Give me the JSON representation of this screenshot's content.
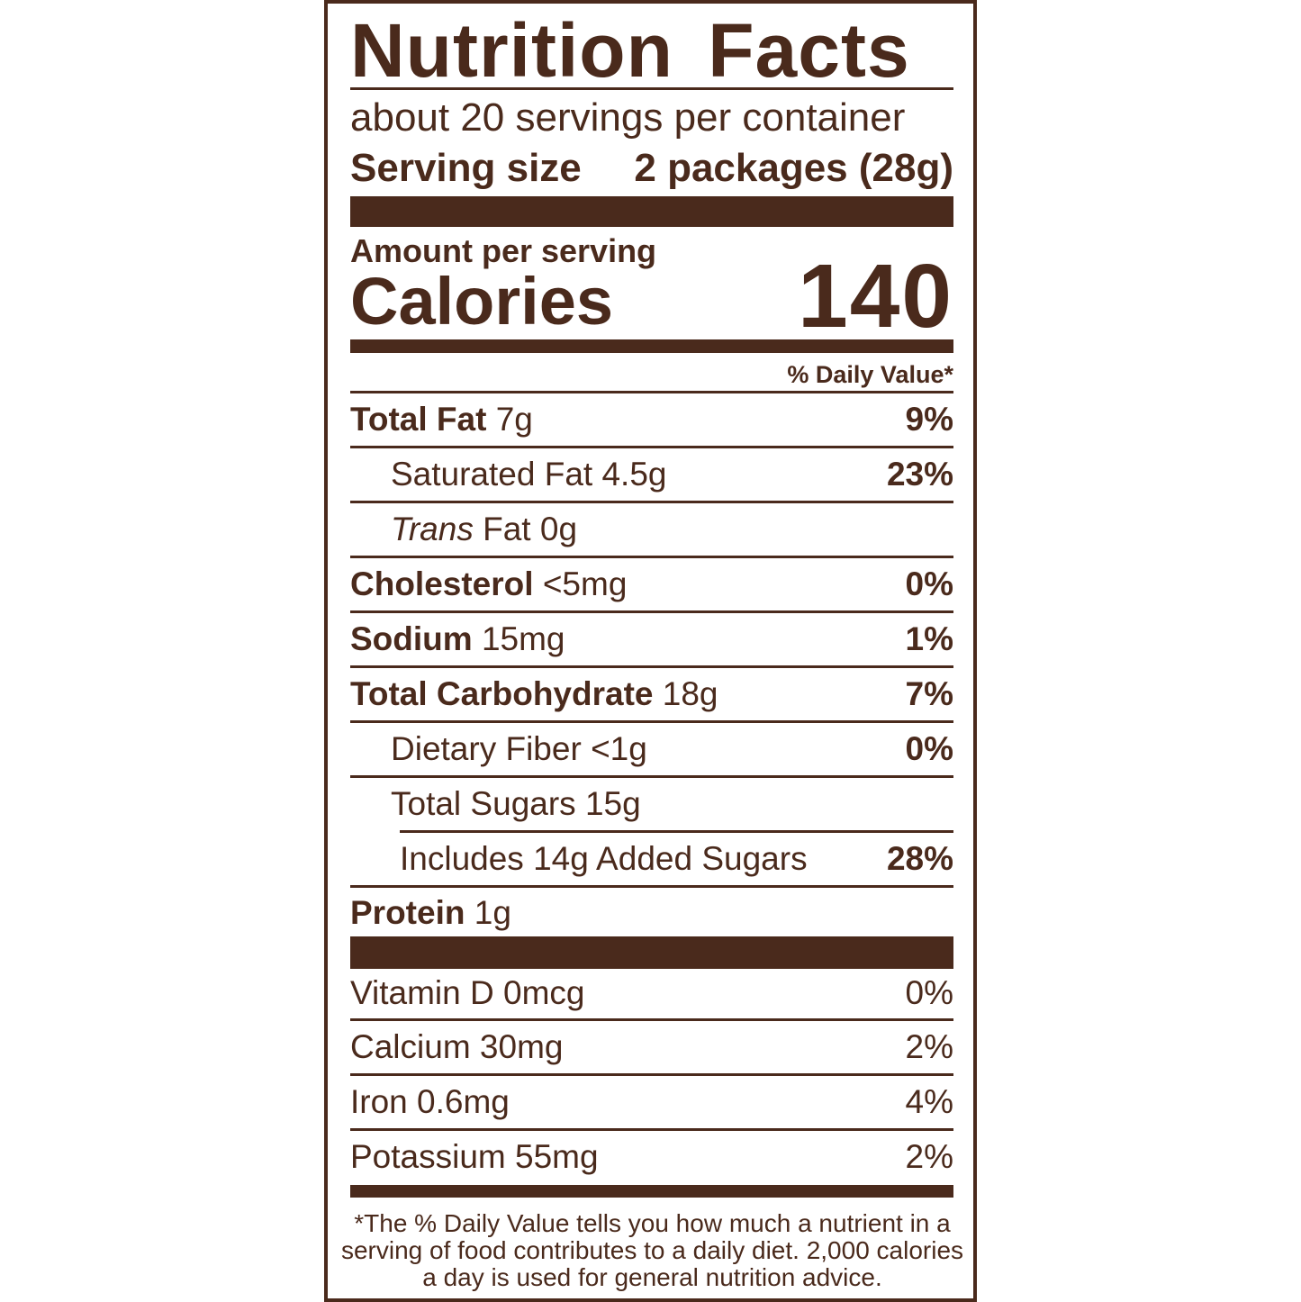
{
  "title": "Nutrition Facts",
  "servings_per_container": "about 20 servings per container",
  "serving_size_label": "Serving size",
  "serving_size_value": "2 packages (28g)",
  "amount_per_serving": "Amount per serving",
  "calories_label": "Calories",
  "calories_value": "140",
  "daily_value_header": "% Daily Value*",
  "nutrients": [
    {
      "name": "Total Fat",
      "amount": "7g",
      "dv": "9%"
    },
    {
      "name": "Saturated Fat",
      "amount": "4.5g",
      "dv": "23%"
    },
    {
      "name": "Trans",
      "name_rest": "Fat",
      "amount": "0g",
      "dv": ""
    },
    {
      "name": "Cholesterol",
      "amount": "<5mg",
      "dv": "0%"
    },
    {
      "name": "Sodium",
      "amount": "15mg",
      "dv": "1%"
    },
    {
      "name": "Total Carbohydrate",
      "amount": "18g",
      "dv": "7%"
    },
    {
      "name": "Dietary Fiber",
      "amount": "<1g",
      "dv": "0%"
    },
    {
      "name": "Total Sugars",
      "amount": "15g",
      "dv": ""
    },
    {
      "name": "Includes 14g Added Sugars",
      "amount": "",
      "dv": "28%"
    },
    {
      "name": "Protein",
      "amount": "1g",
      "dv": ""
    }
  ],
  "vitamins": [
    {
      "text": "Vitamin D 0mcg",
      "dv": "0%"
    },
    {
      "text": "Calcium 30mg",
      "dv": "2%"
    },
    {
      "text": "Iron 0.6mg",
      "dv": "4%"
    },
    {
      "text": "Potassium 55mg",
      "dv": "2%"
    }
  ],
  "footnote": "*The % Daily Value tells you how much a nutrient in a serving of food contributes to a daily diet. 2,000 calories a day is used for general nutrition advice.",
  "colors": {
    "ink": "#4a2a1c",
    "background": "#ffffff"
  }
}
